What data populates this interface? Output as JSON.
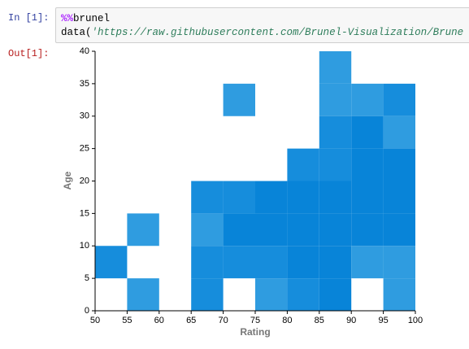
{
  "notebook": {
    "input_prompt": "In [1]:",
    "output_prompt": "Out[1]:",
    "code_line1": {
      "magic": "%%",
      "command": "brunel"
    },
    "code_line2": {
      "call": "data(",
      "string": "'https://raw.githubusercontent.com/Brunel-Visualization/Brune"
    }
  },
  "chart_data": {
    "type": "heatmap",
    "x_label": "Rating",
    "y_label": "Age",
    "x": [
      50,
      55,
      55,
      65,
      65,
      65,
      65,
      70,
      70,
      70,
      70,
      75,
      75,
      75,
      75,
      80,
      80,
      80,
      80,
      80,
      85,
      85,
      85,
      85,
      85,
      85,
      85,
      85,
      90,
      90,
      90,
      90,
      90,
      90,
      95,
      95,
      95,
      95,
      95,
      95,
      95
    ],
    "y": [
      5,
      10,
      0,
      15,
      10,
      5,
      0,
      30,
      15,
      10,
      5,
      15,
      10,
      5,
      0,
      20,
      15,
      10,
      5,
      0,
      35,
      30,
      25,
      20,
      15,
      10,
      5,
      0,
      30,
      25,
      20,
      15,
      10,
      5,
      30,
      25,
      20,
      15,
      10,
      5,
      0
    ],
    "values": [
      2,
      1,
      1,
      2,
      1,
      2,
      2,
      1,
      2,
      3,
      2,
      3,
      3,
      2,
      1,
      2,
      3,
      3,
      3,
      2,
      1,
      1,
      2,
      2,
      3,
      3,
      3,
      3,
      1,
      3,
      3,
      3,
      3,
      1,
      2,
      1,
      3,
      3,
      3,
      1,
      1
    ],
    "colors": [
      "#2f9ce0",
      "#168ddc",
      "#0884d8"
    ],
    "xlim": [
      50,
      100
    ],
    "ylim": [
      0,
      40
    ],
    "xticks": [
      50,
      55,
      60,
      65,
      70,
      75,
      80,
      85,
      90,
      95,
      100
    ],
    "yticks": [
      0,
      5,
      10,
      15,
      20,
      25,
      30,
      35,
      40
    ]
  }
}
